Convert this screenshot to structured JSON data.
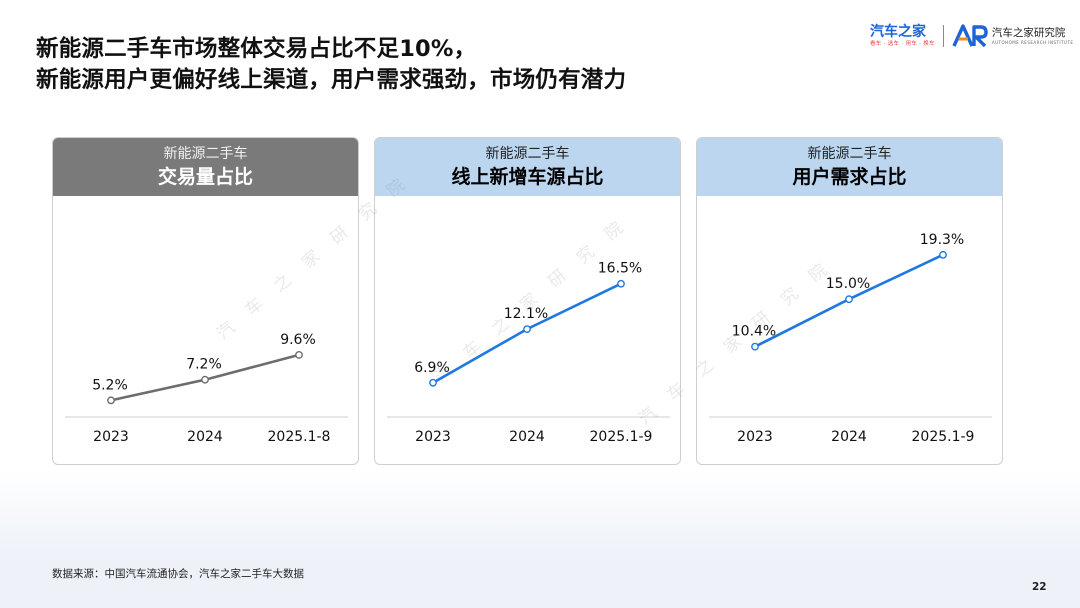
{
  "title": {
    "line1": "新能源二手车市场整体交易占比不足10%，",
    "line2": "新能源用户更偏好线上渠道，用户需求强劲，市场仍有潜力"
  },
  "logo": {
    "brand": "汽车之家",
    "brand_sub": "看车 · 选车 · 用车 · 换车",
    "institute_cn": "汽车之家研究院",
    "institute_en": "AUTOHOME RESEARCH INSTITUTE",
    "ar_icon": "ar-logo-icon"
  },
  "watermark_text": "汽车之家研究院",
  "colors": {
    "gray_line": "#6d6d6d",
    "blue_line": "#1f77e0",
    "gray_header": "#7a7a7a",
    "blue_header": "#bcd6ef"
  },
  "chart_data": [
    {
      "type": "line",
      "subtitle": "新能源二手车",
      "title": "交易量占比",
      "categories": [
        "2023",
        "2024",
        "2025.1-8"
      ],
      "values": [
        5.2,
        7.2,
        9.6
      ],
      "labels": [
        "5.2%",
        "7.2%",
        "9.6%"
      ],
      "ylim": [
        0,
        25
      ],
      "color": "#6d6d6d",
      "grid": false
    },
    {
      "type": "line",
      "subtitle": "新能源二手车",
      "title": "线上新增车源占比",
      "categories": [
        "2023",
        "2024",
        "2025.1-9"
      ],
      "values": [
        6.9,
        12.1,
        16.5
      ],
      "labels": [
        "6.9%",
        "12.1%",
        "16.5%"
      ],
      "ylim": [
        0,
        25
      ],
      "color": "#1f77e0",
      "grid": false
    },
    {
      "type": "line",
      "subtitle": "新能源二手车",
      "title": "用户需求占比",
      "categories": [
        "2023",
        "2024",
        "2025.1-9"
      ],
      "values": [
        10.4,
        15.0,
        19.3
      ],
      "labels": [
        "10.4%",
        "15.0%",
        "19.3%"
      ],
      "ylim": [
        0,
        25
      ],
      "color": "#1f77e0",
      "grid": false
    }
  ],
  "source": "数据来源：中国汽车流通协会，汽车之家二手车大数据",
  "page_number": "22"
}
